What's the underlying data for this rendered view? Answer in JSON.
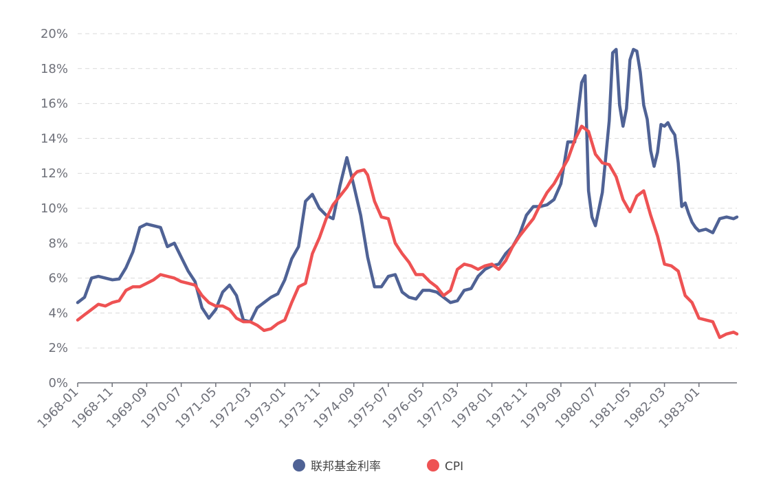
{
  "chart_data": {
    "type": "line",
    "title": "",
    "xlabel": "",
    "ylabel": "",
    "y_unit": "%",
    "ylim": [
      0,
      20
    ],
    "yticks": [
      0,
      2,
      4,
      6,
      8,
      10,
      12,
      14,
      16,
      18,
      20
    ],
    "y_tick_labels": [
      "0%",
      "2%",
      "4%",
      "6%",
      "8%",
      "10%",
      "12%",
      "14%",
      "16%",
      "18%",
      "20%"
    ],
    "x_start": "1968-01",
    "x_end": "1983-12",
    "x_tick_labels": [
      "1968-01",
      "1968-11",
      "1969-09",
      "1970-07",
      "1971-05",
      "1972-03",
      "1973-01",
      "1973-11",
      "1974-09",
      "1975-07",
      "1976-05",
      "1977-03",
      "1978-01",
      "1978-11",
      "1979-09",
      "1980-07",
      "1981-05",
      "1982-03",
      "1983-01"
    ],
    "grid": true,
    "legend_position": "bottom-center",
    "series": [
      {
        "name": "联邦基金利率",
        "color": "#4f6295",
        "points": [
          [
            "1968-01",
            4.6
          ],
          [
            "1968-03",
            4.9
          ],
          [
            "1968-05",
            6.0
          ],
          [
            "1968-07",
            6.1
          ],
          [
            "1968-09",
            6.0
          ],
          [
            "1968-11",
            5.9
          ],
          [
            "1969-01",
            5.95
          ],
          [
            "1969-03",
            6.6
          ],
          [
            "1969-05",
            7.5
          ],
          [
            "1969-07",
            8.9
          ],
          [
            "1969-09",
            9.1
          ],
          [
            "1969-11",
            9.0
          ],
          [
            "1970-01",
            8.9
          ],
          [
            "1970-03",
            7.8
          ],
          [
            "1970-05",
            8.0
          ],
          [
            "1970-07",
            7.2
          ],
          [
            "1970-09",
            6.4
          ],
          [
            "1970-11",
            5.8
          ],
          [
            "1971-01",
            4.3
          ],
          [
            "1971-03",
            3.7
          ],
          [
            "1971-05",
            4.2
          ],
          [
            "1971-07",
            5.2
          ],
          [
            "1971-09",
            5.6
          ],
          [
            "1971-11",
            5.0
          ],
          [
            "1972-01",
            3.6
          ],
          [
            "1972-03",
            3.5
          ],
          [
            "1972-05",
            4.3
          ],
          [
            "1972-07",
            4.6
          ],
          [
            "1972-09",
            4.9
          ],
          [
            "1972-11",
            5.1
          ],
          [
            "1973-01",
            5.9
          ],
          [
            "1973-03",
            7.1
          ],
          [
            "1973-05",
            7.8
          ],
          [
            "1973-07",
            10.4
          ],
          [
            "1973-09",
            10.8
          ],
          [
            "1973-11",
            10.0
          ],
          [
            "1974-01",
            9.6
          ],
          [
            "1974-03",
            9.4
          ],
          [
            "1974-05",
            11.3
          ],
          [
            "1974-07",
            12.9
          ],
          [
            "1974-09",
            11.3
          ],
          [
            "1974-11",
            9.6
          ],
          [
            "1975-01",
            7.2
          ],
          [
            "1975-03",
            5.5
          ],
          [
            "1975-05",
            5.5
          ],
          [
            "1975-07",
            6.1
          ],
          [
            "1975-09",
            6.2
          ],
          [
            "1975-11",
            5.2
          ],
          [
            "1976-01",
            4.9
          ],
          [
            "1976-03",
            4.8
          ],
          [
            "1976-05",
            5.3
          ],
          [
            "1976-07",
            5.3
          ],
          [
            "1976-09",
            5.2
          ],
          [
            "1976-11",
            4.9
          ],
          [
            "1977-01",
            4.6
          ],
          [
            "1977-03",
            4.7
          ],
          [
            "1977-05",
            5.3
          ],
          [
            "1977-07",
            5.4
          ],
          [
            "1977-09",
            6.1
          ],
          [
            "1977-11",
            6.5
          ],
          [
            "1978-01",
            6.7
          ],
          [
            "1978-03",
            6.8
          ],
          [
            "1978-05",
            7.4
          ],
          [
            "1978-07",
            7.8
          ],
          [
            "1978-09",
            8.5
          ],
          [
            "1978-11",
            9.6
          ],
          [
            "1979-01",
            10.1
          ],
          [
            "1979-03",
            10.1
          ],
          [
            "1979-05",
            10.2
          ],
          [
            "1979-07",
            10.5
          ],
          [
            "1979-09",
            11.4
          ],
          [
            "1979-11",
            13.8
          ],
          [
            "1980-01",
            13.8
          ],
          [
            "1980-03",
            17.2
          ],
          [
            "1980-04",
            17.6
          ],
          [
            "1980-05",
            11.0
          ],
          [
            "1980-06",
            9.5
          ],
          [
            "1980-07",
            9.0
          ],
          [
            "1980-09",
            10.9
          ],
          [
            "1980-11",
            15.0
          ],
          [
            "1980-12",
            18.9
          ],
          [
            "1981-01",
            19.1
          ],
          [
            "1981-02",
            15.9
          ],
          [
            "1981-03",
            14.7
          ],
          [
            "1981-04",
            15.7
          ],
          [
            "1981-05",
            18.5
          ],
          [
            "1981-06",
            19.1
          ],
          [
            "1981-07",
            19.0
          ],
          [
            "1981-08",
            17.8
          ],
          [
            "1981-09",
            15.9
          ],
          [
            "1981-10",
            15.1
          ],
          [
            "1981-11",
            13.3
          ],
          [
            "1981-12",
            12.4
          ],
          [
            "1982-01",
            13.2
          ],
          [
            "1982-02",
            14.8
          ],
          [
            "1982-03",
            14.7
          ],
          [
            "1982-04",
            14.9
          ],
          [
            "1982-05",
            14.5
          ],
          [
            "1982-06",
            14.2
          ],
          [
            "1982-07",
            12.6
          ],
          [
            "1982-08",
            10.1
          ],
          [
            "1982-09",
            10.3
          ],
          [
            "1982-10",
            9.7
          ],
          [
            "1982-11",
            9.2
          ],
          [
            "1982-12",
            8.9
          ],
          [
            "1983-01",
            8.7
          ],
          [
            "1983-03",
            8.8
          ],
          [
            "1983-05",
            8.6
          ],
          [
            "1983-07",
            9.4
          ],
          [
            "1983-09",
            9.5
          ],
          [
            "1983-11",
            9.4
          ],
          [
            "1983-12",
            9.5
          ]
        ]
      },
      {
        "name": "CPI",
        "color": "#ee5253",
        "points": [
          [
            "1968-01",
            3.6
          ],
          [
            "1968-03",
            3.9
          ],
          [
            "1968-05",
            4.2
          ],
          [
            "1968-07",
            4.5
          ],
          [
            "1968-09",
            4.4
          ],
          [
            "1968-11",
            4.6
          ],
          [
            "1969-01",
            4.7
          ],
          [
            "1969-03",
            5.3
          ],
          [
            "1969-05",
            5.5
          ],
          [
            "1969-07",
            5.5
          ],
          [
            "1969-09",
            5.7
          ],
          [
            "1969-11",
            5.9
          ],
          [
            "1970-01",
            6.2
          ],
          [
            "1970-03",
            6.1
          ],
          [
            "1970-05",
            6.0
          ],
          [
            "1970-07",
            5.8
          ],
          [
            "1970-09",
            5.7
          ],
          [
            "1970-11",
            5.6
          ],
          [
            "1971-01",
            5.0
          ],
          [
            "1971-03",
            4.6
          ],
          [
            "1971-05",
            4.4
          ],
          [
            "1971-07",
            4.4
          ],
          [
            "1971-09",
            4.2
          ],
          [
            "1971-11",
            3.7
          ],
          [
            "1972-01",
            3.5
          ],
          [
            "1972-03",
            3.5
          ],
          [
            "1972-05",
            3.3
          ],
          [
            "1972-07",
            3.0
          ],
          [
            "1972-09",
            3.1
          ],
          [
            "1972-11",
            3.4
          ],
          [
            "1973-01",
            3.6
          ],
          [
            "1973-03",
            4.6
          ],
          [
            "1973-05",
            5.5
          ],
          [
            "1973-07",
            5.7
          ],
          [
            "1973-09",
            7.4
          ],
          [
            "1973-11",
            8.3
          ],
          [
            "1974-01",
            9.4
          ],
          [
            "1974-03",
            10.2
          ],
          [
            "1974-05",
            10.7
          ],
          [
            "1974-07",
            11.2
          ],
          [
            "1974-09",
            11.9
          ],
          [
            "1974-10",
            12.1
          ],
          [
            "1974-12",
            12.2
          ],
          [
            "1975-01",
            11.9
          ],
          [
            "1975-03",
            10.4
          ],
          [
            "1975-05",
            9.5
          ],
          [
            "1975-07",
            9.4
          ],
          [
            "1975-09",
            8.0
          ],
          [
            "1975-11",
            7.4
          ],
          [
            "1976-01",
            6.9
          ],
          [
            "1976-03",
            6.2
          ],
          [
            "1976-05",
            6.2
          ],
          [
            "1976-07",
            5.8
          ],
          [
            "1976-09",
            5.5
          ],
          [
            "1976-11",
            5.0
          ],
          [
            "1977-01",
            5.3
          ],
          [
            "1977-03",
            6.5
          ],
          [
            "1977-05",
            6.8
          ],
          [
            "1977-07",
            6.7
          ],
          [
            "1977-09",
            6.5
          ],
          [
            "1977-11",
            6.7
          ],
          [
            "1978-01",
            6.8
          ],
          [
            "1978-03",
            6.5
          ],
          [
            "1978-05",
            7.0
          ],
          [
            "1978-07",
            7.8
          ],
          [
            "1978-09",
            8.4
          ],
          [
            "1978-11",
            8.9
          ],
          [
            "1979-01",
            9.4
          ],
          [
            "1979-03",
            10.2
          ],
          [
            "1979-05",
            10.9
          ],
          [
            "1979-07",
            11.4
          ],
          [
            "1979-09",
            12.1
          ],
          [
            "1979-11",
            12.8
          ],
          [
            "1980-01",
            13.9
          ],
          [
            "1980-03",
            14.7
          ],
          [
            "1980-05",
            14.4
          ],
          [
            "1980-07",
            13.1
          ],
          [
            "1980-09",
            12.6
          ],
          [
            "1980-11",
            12.5
          ],
          [
            "1981-01",
            11.8
          ],
          [
            "1981-03",
            10.5
          ],
          [
            "1981-05",
            9.8
          ],
          [
            "1981-07",
            10.7
          ],
          [
            "1981-09",
            11.0
          ],
          [
            "1981-11",
            9.6
          ],
          [
            "1982-01",
            8.4
          ],
          [
            "1982-03",
            6.8
          ],
          [
            "1982-05",
            6.7
          ],
          [
            "1982-07",
            6.4
          ],
          [
            "1982-09",
            5.0
          ],
          [
            "1982-11",
            4.6
          ],
          [
            "1983-01",
            3.7
          ],
          [
            "1983-03",
            3.6
          ],
          [
            "1983-05",
            3.5
          ],
          [
            "1983-07",
            2.6
          ],
          [
            "1983-09",
            2.8
          ],
          [
            "1983-11",
            2.9
          ],
          [
            "1983-12",
            2.8
          ]
        ]
      }
    ]
  }
}
